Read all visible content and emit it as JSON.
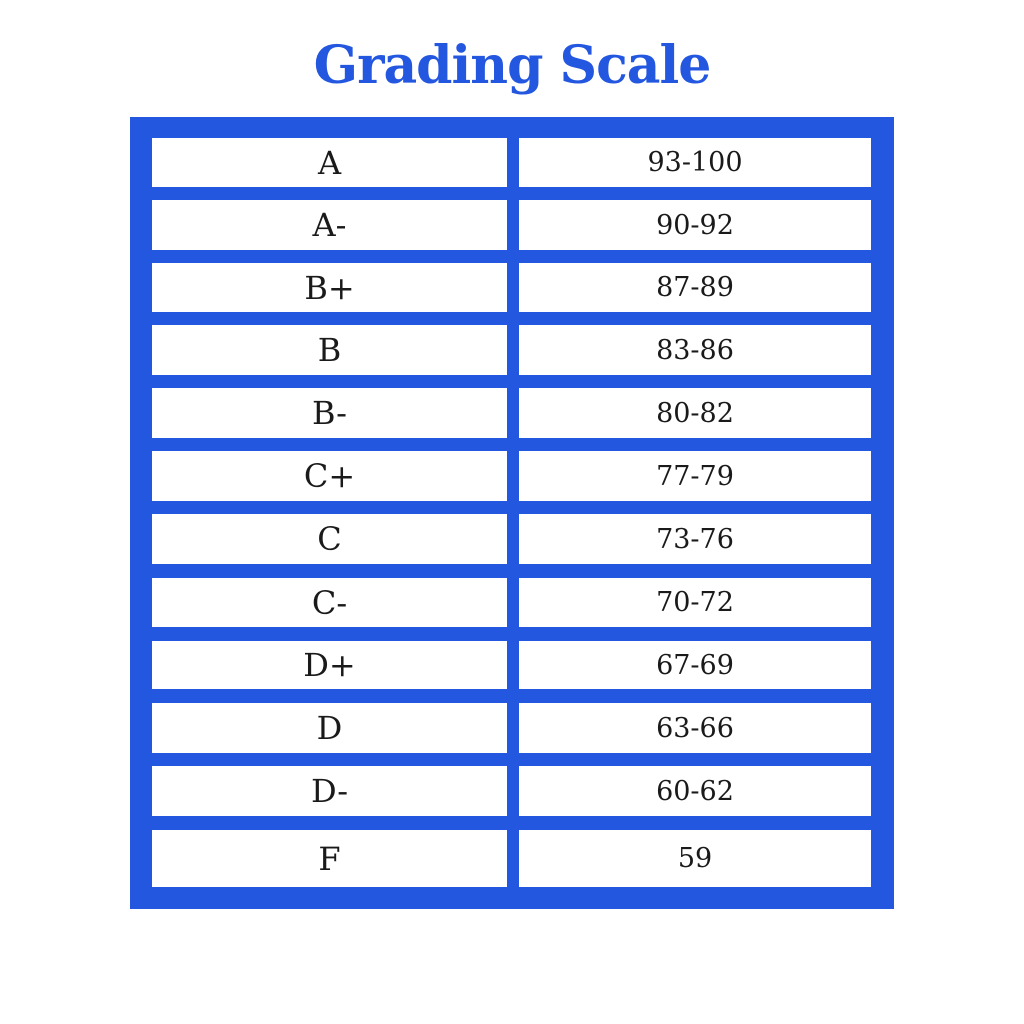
{
  "title": "Grading Scale",
  "colors": {
    "accent": "#2457e0",
    "cell_background": "#ffffff",
    "text": "#1a1a1a"
  },
  "rows": [
    {
      "grade": "A",
      "range": "93-100"
    },
    {
      "grade": "A-",
      "range": "90-92"
    },
    {
      "grade": "B+",
      "range": "87-89"
    },
    {
      "grade": "B",
      "range": "83-86"
    },
    {
      "grade": "B-",
      "range": "80-82"
    },
    {
      "grade": "C+",
      "range": "77-79"
    },
    {
      "grade": "C",
      "range": "73-76"
    },
    {
      "grade": "C-",
      "range": "70-72"
    },
    {
      "grade": "D+",
      "range": "67-69"
    },
    {
      "grade": "D",
      "range": "63-66"
    },
    {
      "grade": "D-",
      "range": "60-62"
    },
    {
      "grade": "F",
      "range": "59"
    }
  ]
}
